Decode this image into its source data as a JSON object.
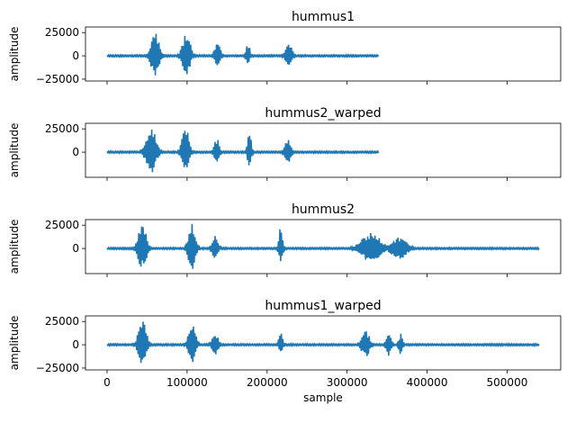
{
  "chart_data": {
    "type": "line",
    "color": "#1f77b4",
    "x_axis": {
      "label": "sample",
      "ticks": [
        0,
        100000,
        200000,
        300000,
        400000,
        500000
      ],
      "tick_labels": [
        "0",
        "100000",
        "200000",
        "300000",
        "400000",
        "500000"
      ],
      "xlim": [
        -27000,
        567000
      ],
      "shared": true
    },
    "panels": [
      {
        "title": "hummus1",
        "ylabel": "amplitude",
        "ylim": [
          -27000,
          31000
        ],
        "yticks": [
          -25000,
          0,
          25000
        ],
        "ytick_labels": [
          "−25000",
          "0",
          "25000"
        ],
        "length": 340000,
        "noise": 900,
        "bursts": [
          {
            "center": 60000,
            "width": 16000,
            "pos": 27000,
            "neg": -23000
          },
          {
            "center": 99000,
            "width": 16000,
            "pos": 25000,
            "neg": -21000
          },
          {
            "center": 138000,
            "width": 12000,
            "pos": 16000,
            "neg": -12000
          },
          {
            "center": 176000,
            "width": 8000,
            "pos": 14000,
            "neg": -9000
          },
          {
            "center": 227000,
            "width": 14000,
            "pos": 14000,
            "neg": -12000
          }
        ]
      },
      {
        "title": "hummus2_warped",
        "ylabel": "amplitude",
        "ylim": [
          -27000,
          31000
        ],
        "yticks": [
          0,
          25000
        ],
        "ytick_labels": [
          "0",
          "25000"
        ],
        "length": 340000,
        "noise": 900,
        "bursts": [
          {
            "center": 55000,
            "width": 20000,
            "pos": 27000,
            "neg": -23000
          },
          {
            "center": 98000,
            "width": 14000,
            "pos": 27000,
            "neg": -24000
          },
          {
            "center": 137000,
            "width": 10000,
            "pos": 16000,
            "neg": -12000
          },
          {
            "center": 178000,
            "width": 8000,
            "pos": 21000,
            "neg": -16000
          },
          {
            "center": 226000,
            "width": 12000,
            "pos": 16000,
            "neg": -14000
          }
        ]
      },
      {
        "title": "hummus2",
        "ylabel": "amplitude",
        "ylim": [
          -27000,
          31000
        ],
        "yticks": [
          0,
          25000
        ],
        "ytick_labels": [
          "0",
          "25000"
        ],
        "length": 540000,
        "noise": 900,
        "bursts": [
          {
            "center": 44000,
            "width": 16000,
            "pos": 27000,
            "neg": -23000
          },
          {
            "center": 106000,
            "width": 14000,
            "pos": 27000,
            "neg": -23000
          },
          {
            "center": 135000,
            "width": 12000,
            "pos": 14000,
            "neg": -12000
          },
          {
            "center": 217000,
            "width": 8000,
            "pos": 23000,
            "neg": -18000
          },
          {
            "center": 330000,
            "width": 40000,
            "pos": 17000,
            "neg": -15000
          },
          {
            "center": 365000,
            "width": 30000,
            "pos": 13000,
            "neg": -13000
          }
        ]
      },
      {
        "title": "hummus1_warped",
        "ylabel": "amplitude",
        "ylim": [
          -27000,
          31000
        ],
        "yticks": [
          -25000,
          0,
          25000
        ],
        "ytick_labels": [
          "−25000",
          "0",
          "25000"
        ],
        "length": 540000,
        "noise": 900,
        "bursts": [
          {
            "center": 44000,
            "width": 16000,
            "pos": 27000,
            "neg": -23000
          },
          {
            "center": 106000,
            "width": 14000,
            "pos": 25000,
            "neg": -21000
          },
          {
            "center": 135000,
            "width": 12000,
            "pos": 14000,
            "neg": -12000
          },
          {
            "center": 217000,
            "width": 8000,
            "pos": 13000,
            "neg": -9000
          },
          {
            "center": 323000,
            "width": 16000,
            "pos": 16000,
            "neg": -14000
          },
          {
            "center": 352000,
            "width": 10000,
            "pos": 14000,
            "neg": -14000
          },
          {
            "center": 367000,
            "width": 8000,
            "pos": 12000,
            "neg": -12000
          }
        ]
      }
    ]
  }
}
